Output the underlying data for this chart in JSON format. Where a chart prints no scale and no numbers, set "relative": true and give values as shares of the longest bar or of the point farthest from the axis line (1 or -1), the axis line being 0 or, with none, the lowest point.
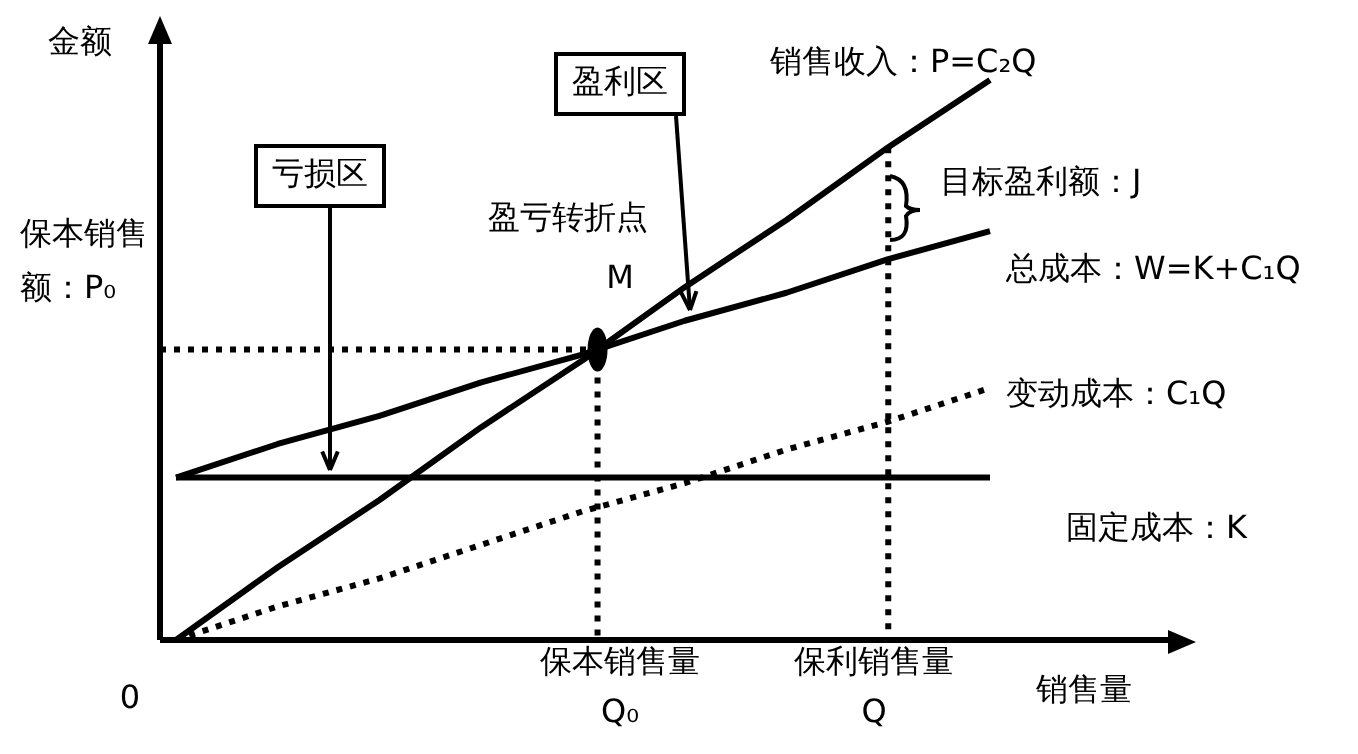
{
  "chart_data": {
    "type": "line",
    "relative": true,
    "ylabel": "金额",
    "xlabel": "销售量",
    "legend": false,
    "marker": "none",
    "categories": [
      null,
      null,
      null,
      null,
      null,
      null,
      null,
      null,
      null
    ],
    "series": [
      {
        "name": "销售收入：P=C₂Q",
        "color": "#000000",
        "values": [
          0,
          0.13,
          0.25,
          0.38,
          0.5,
          0.63,
          0.75,
          0.88,
          1
        ],
        "line_style": "solid"
      },
      {
        "name": "总成本：W=K+C₁Q",
        "color": "#000000",
        "values": [
          0.29,
          0.35,
          0.4,
          0.46,
          0.51,
          0.57,
          0.62,
          0.68,
          0.73
        ],
        "line_style": "solid"
      },
      {
        "name": "变动成本：C₁Q",
        "color": "#000000",
        "values": [
          0,
          0.06,
          0.11,
          0.17,
          0.23,
          0.28,
          0.34,
          0.39,
          0.45
        ],
        "line_style": "dotted"
      },
      {
        "name": "固定成本：K",
        "color": "#000000",
        "values": [
          0.29,
          0.29,
          0.29,
          0.29,
          0.29,
          0.29,
          0.29,
          0.29,
          0.29
        ],
        "line_style": "solid"
      }
    ],
    "annotations": [
      "亏损区",
      "盈利区",
      "盈亏转折点",
      "M",
      "目标盈利额：J",
      "保本销售额：P₀",
      "保本销售量Q₀",
      "保利销售量Q",
      "0"
    ]
  }
}
